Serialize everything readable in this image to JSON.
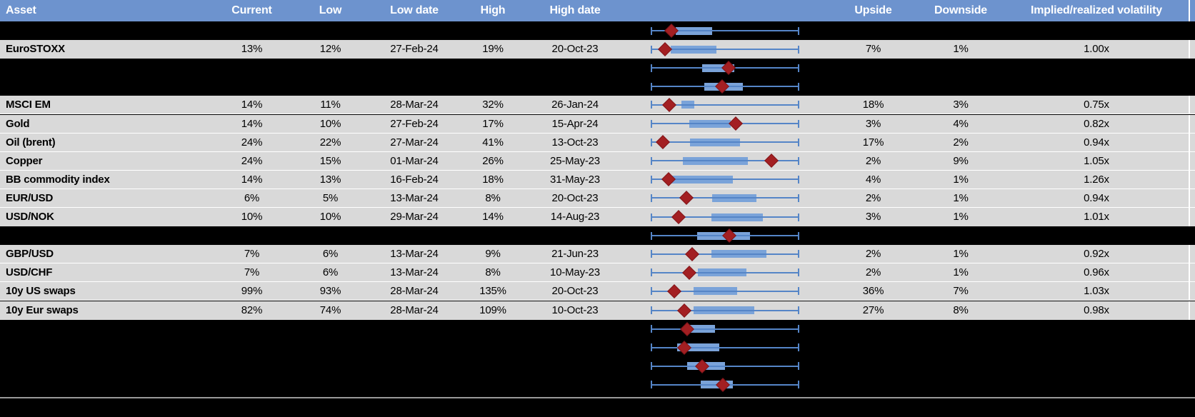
{
  "colors": {
    "header_bg": "#6d93ce",
    "header_text": "#ffffff",
    "row_bg": "#d9d9d9",
    "black_bg": "#000000",
    "text": "#000000",
    "box_fill": "#7aa3d9",
    "whisker": "#5585c7",
    "marker_fill": "#a31f22",
    "marker_border": "#801418",
    "footer_line": "#9a9a9a",
    "gridline": "#ffffff"
  },
  "chart_data": {
    "type": "table",
    "title": "",
    "columns": [
      {
        "key": "asset",
        "label": "Asset"
      },
      {
        "key": "current",
        "label": "Current"
      },
      {
        "key": "low",
        "label": "Low"
      },
      {
        "key": "low_date",
        "label": "Low date"
      },
      {
        "key": "high",
        "label": "High"
      },
      {
        "key": "high_date",
        "label": "High date"
      },
      {
        "key": "range_plot",
        "label": ""
      },
      {
        "key": "upside",
        "label": "Upside"
      },
      {
        "key": "downside",
        "label": "Downside"
      },
      {
        "key": "implied_realized",
        "label": "Implied/realized volatility"
      }
    ],
    "range_plot_semantics": {
      "whisker": "normalized low-to-high span",
      "box": "middle range band",
      "marker": "diamond marker position within span"
    },
    "rows": [
      {
        "kind": "plot",
        "box": {
          "whisker_lo": 0,
          "whisker_hi": 1,
          "box_start": 0.165,
          "box_end": 0.415,
          "marker": 0.136
        }
      },
      {
        "kind": "data",
        "asset": "EuroSTOXX",
        "current": "13%",
        "low": "12%",
        "low_date": "27-Feb-24",
        "high": "19%",
        "high_date": "20-Oct-23",
        "upside": "7%",
        "downside": "1%",
        "implied_realized": "1.00x",
        "box": {
          "whisker_lo": 0,
          "whisker_hi": 1,
          "box_start": 0.132,
          "box_end": 0.44,
          "marker": 0.092
        }
      },
      {
        "kind": "plot",
        "box": {
          "whisker_lo": 0,
          "whisker_hi": 1,
          "box_start": 0.346,
          "box_end": 0.565,
          "marker": 0.522
        }
      },
      {
        "kind": "plot",
        "box": {
          "whisker_lo": 0,
          "whisker_hi": 1,
          "box_start": 0.357,
          "box_end": 0.62,
          "marker": 0.483
        }
      },
      {
        "kind": "data",
        "asset": "MSCI EM",
        "current": "14%",
        "low": "11%",
        "low_date": "28-Mar-24",
        "high": "32%",
        "high_date": "26-Jan-24",
        "upside": "18%",
        "downside": "3%",
        "implied_realized": "0.75x",
        "box": {
          "whisker_lo": 0,
          "whisker_hi": 1,
          "box_start": 0.206,
          "box_end": 0.291,
          "marker": 0.121
        }
      },
      {
        "kind": "data",
        "asset": "Gold",
        "current": "14%",
        "low": "10%",
        "low_date": "27-Feb-24",
        "high": "17%",
        "high_date": "15-Apr-24",
        "upside": "3%",
        "downside": "4%",
        "implied_realized": "0.82x",
        "box": {
          "whisker_lo": 0,
          "whisker_hi": 1,
          "box_start": 0.259,
          "box_end": 0.537,
          "marker": 0.571
        }
      },
      {
        "kind": "data",
        "asset": "Oil (brent)",
        "current": "24%",
        "low": "22%",
        "low_date": "27-Mar-24",
        "high": "41%",
        "high_date": "13-Oct-23",
        "upside": "17%",
        "downside": "2%",
        "implied_realized": "0.94x",
        "box": {
          "whisker_lo": 0,
          "whisker_hi": 1,
          "box_start": 0.262,
          "box_end": 0.6,
          "marker": 0.08
        }
      },
      {
        "kind": "data",
        "asset": "Copper",
        "current": "24%",
        "low": "15%",
        "low_date": "01-Mar-24",
        "high": "26%",
        "high_date": "25-May-23",
        "upside": "2%",
        "downside": "9%",
        "implied_realized": "1.05x",
        "box": {
          "whisker_lo": 0,
          "whisker_hi": 1,
          "box_start": 0.215,
          "box_end": 0.657,
          "marker": 0.817
        }
      },
      {
        "kind": "data",
        "asset": "BB commodity index",
        "current": "14%",
        "low": "13%",
        "low_date": "16-Feb-24",
        "high": "18%",
        "high_date": "31-May-23",
        "upside": "4%",
        "downside": "1%",
        "implied_realized": "1.26x",
        "box": {
          "whisker_lo": 0,
          "whisker_hi": 1,
          "box_start": 0.124,
          "box_end": 0.553,
          "marker": 0.115
        }
      },
      {
        "kind": "data",
        "asset": "EUR/USD",
        "current": "6%",
        "low": "5%",
        "low_date": "13-Mar-24",
        "high": "8%",
        "high_date": "20-Oct-23",
        "upside": "2%",
        "downside": "1%",
        "implied_realized": "0.94x",
        "box": {
          "whisker_lo": 0,
          "whisker_hi": 1,
          "box_start": 0.415,
          "box_end": 0.713,
          "marker": 0.236
        }
      },
      {
        "kind": "data",
        "asset": "USD/NOK",
        "current": "10%",
        "low": "10%",
        "low_date": "29-Mar-24",
        "high": "14%",
        "high_date": "14-Aug-23",
        "upside": "3%",
        "downside": "1%",
        "implied_realized": "1.01x",
        "box": {
          "whisker_lo": 0,
          "whisker_hi": 1,
          "box_start": 0.407,
          "box_end": 0.756,
          "marker": 0.184
        }
      },
      {
        "kind": "plot",
        "box": {
          "whisker_lo": 0,
          "whisker_hi": 1,
          "box_start": 0.312,
          "box_end": 0.671,
          "marker": 0.53
        }
      },
      {
        "kind": "data",
        "asset": "GBP/USD",
        "current": "7%",
        "low": "6%",
        "low_date": "13-Mar-24",
        "high": "9%",
        "high_date": "21-Jun-23",
        "upside": "2%",
        "downside": "1%",
        "implied_realized": "0.92x",
        "box": {
          "whisker_lo": 0,
          "whisker_hi": 1,
          "box_start": 0.408,
          "box_end": 0.781,
          "marker": 0.277
        }
      },
      {
        "kind": "data",
        "asset": "USD/CHF",
        "current": "7%",
        "low": "6%",
        "low_date": "13-Mar-24",
        "high": "8%",
        "high_date": "10-May-23",
        "upside": "2%",
        "downside": "1%",
        "implied_realized": "0.96x",
        "box": {
          "whisker_lo": 0,
          "whisker_hi": 1,
          "box_start": 0.317,
          "box_end": 0.648,
          "marker": 0.258
        }
      },
      {
        "kind": "data",
        "asset": "10y US swaps",
        "current": "99%",
        "low": "93%",
        "low_date": "28-Mar-24",
        "high": "135%",
        "high_date": "20-Oct-23",
        "upside": "36%",
        "downside": "7%",
        "implied_realized": "1.03x",
        "box": {
          "whisker_lo": 0,
          "whisker_hi": 1,
          "box_start": 0.288,
          "box_end": 0.582,
          "marker": 0.157
        }
      },
      {
        "kind": "data",
        "asset": "10y Eur swaps",
        "current": "82%",
        "low": "74%",
        "low_date": "28-Mar-24",
        "high": "109%",
        "high_date": "10-Oct-23",
        "upside": "27%",
        "downside": "8%",
        "implied_realized": "0.98x",
        "box": {
          "whisker_lo": 0,
          "whisker_hi": 1,
          "box_start": 0.284,
          "box_end": 0.697,
          "marker": 0.222
        }
      },
      {
        "kind": "plot",
        "box": {
          "whisker_lo": 0,
          "whisker_hi": 1,
          "box_start": 0.263,
          "box_end": 0.434,
          "marker": 0.241
        }
      },
      {
        "kind": "plot",
        "box": {
          "whisker_lo": 0,
          "whisker_hi": 1,
          "box_start": 0.177,
          "box_end": 0.462,
          "marker": 0.224
        }
      },
      {
        "kind": "plot",
        "box": {
          "whisker_lo": 0,
          "whisker_hi": 1,
          "box_start": 0.243,
          "box_end": 0.499,
          "marker": 0.344
        }
      },
      {
        "kind": "plot",
        "box": {
          "whisker_lo": 0,
          "whisker_hi": 1,
          "box_start": 0.337,
          "box_end": 0.551,
          "marker": 0.487
        }
      }
    ]
  }
}
